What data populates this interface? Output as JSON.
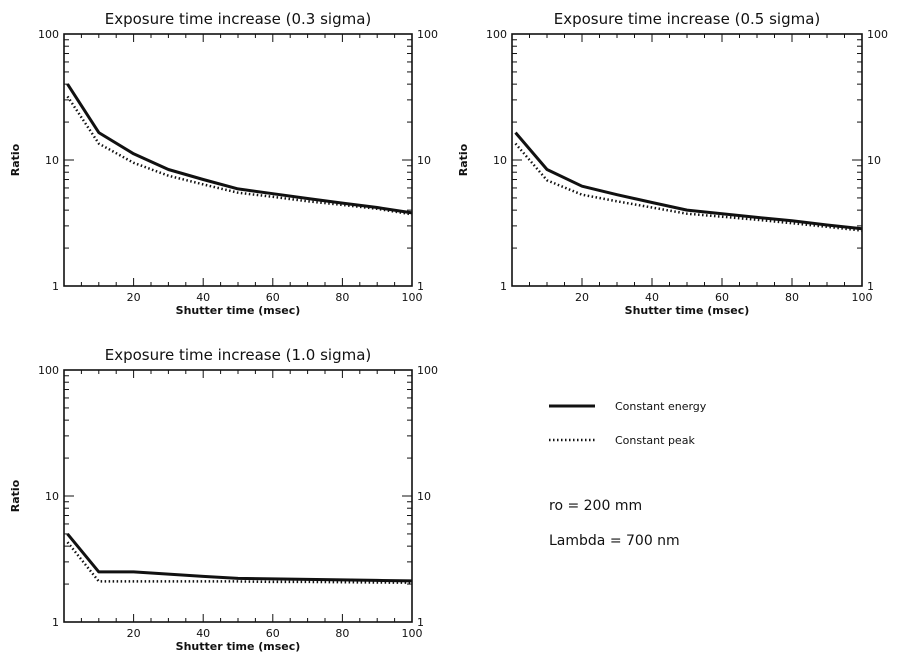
{
  "chart_data": [
    {
      "type": "line",
      "title": "Exposure time increase (0.3 sigma)",
      "xlabel": "Shutter time (msec)",
      "ylabel": "Ratio",
      "xlim": [
        0,
        100
      ],
      "ylim": [
        1,
        100
      ],
      "yscale": "log",
      "xticks": [
        20,
        40,
        60,
        80,
        100
      ],
      "yticks": [
        1,
        10,
        100
      ],
      "series": [
        {
          "name": "Constant energy",
          "style": "solid",
          "x": [
            1,
            10,
            20,
            30,
            40,
            50,
            60,
            70,
            80,
            90,
            100
          ],
          "y": [
            40,
            16.5,
            11.2,
            8.4,
            7.0,
            5.9,
            5.4,
            4.95,
            4.55,
            4.2,
            3.8
          ]
        },
        {
          "name": "Constant peak",
          "style": "dotted",
          "x": [
            1,
            10,
            20,
            30,
            40,
            50,
            60,
            70,
            80,
            90,
            100
          ],
          "y": [
            32,
            13.5,
            9.5,
            7.5,
            6.4,
            5.5,
            5.1,
            4.7,
            4.4,
            4.1,
            3.7
          ]
        }
      ]
    },
    {
      "type": "line",
      "title": "Exposure time increase (0.5 sigma)",
      "xlabel": "Shutter time (msec)",
      "ylabel": "Ratio",
      "xlim": [
        0,
        100
      ],
      "ylim": [
        1,
        100
      ],
      "yscale": "log",
      "xticks": [
        20,
        40,
        60,
        80,
        100
      ],
      "yticks": [
        1,
        10,
        100
      ],
      "series": [
        {
          "name": "Constant energy",
          "style": "solid",
          "x": [
            1,
            10,
            20,
            30,
            40,
            50,
            60,
            70,
            80,
            90,
            100
          ],
          "y": [
            16.5,
            8.4,
            6.2,
            5.3,
            4.6,
            4.0,
            3.75,
            3.5,
            3.3,
            3.05,
            2.85
          ]
        },
        {
          "name": "Constant peak",
          "style": "dotted",
          "x": [
            1,
            10,
            20,
            30,
            40,
            50,
            60,
            70,
            80,
            90,
            100
          ],
          "y": [
            13.5,
            6.9,
            5.3,
            4.7,
            4.2,
            3.75,
            3.55,
            3.35,
            3.15,
            2.95,
            2.75
          ]
        }
      ]
    },
    {
      "type": "line",
      "title": "Exposure time increase (1.0 sigma)",
      "xlabel": "Shutter time (msec)",
      "ylabel": "Ratio",
      "xlim": [
        0,
        100
      ],
      "ylim": [
        1,
        100
      ],
      "yscale": "log",
      "xticks": [
        20,
        40,
        60,
        80,
        100
      ],
      "yticks": [
        1,
        10,
        100
      ],
      "series": [
        {
          "name": "Constant energy",
          "style": "solid",
          "x": [
            1,
            10,
            20,
            30,
            40,
            50,
            60,
            70,
            80,
            90,
            100
          ],
          "y": [
            5.0,
            2.5,
            2.5,
            2.4,
            2.3,
            2.22,
            2.2,
            2.18,
            2.16,
            2.14,
            2.12
          ]
        },
        {
          "name": "Constant peak",
          "style": "dotted",
          "x": [
            1,
            10,
            20,
            30,
            40,
            50,
            60,
            70,
            80,
            90,
            100
          ],
          "y": [
            4.3,
            2.1,
            2.1,
            2.1,
            2.1,
            2.1,
            2.08,
            2.08,
            2.07,
            2.06,
            2.05
          ]
        }
      ]
    }
  ],
  "legend": {
    "entries": [
      {
        "label": "Constant energy",
        "style": "solid"
      },
      {
        "label": "Constant peak",
        "style": "dotted"
      }
    ]
  },
  "annotations": {
    "ro": "ro = 200 mm",
    "lambda": "Lambda = 700 nm"
  }
}
